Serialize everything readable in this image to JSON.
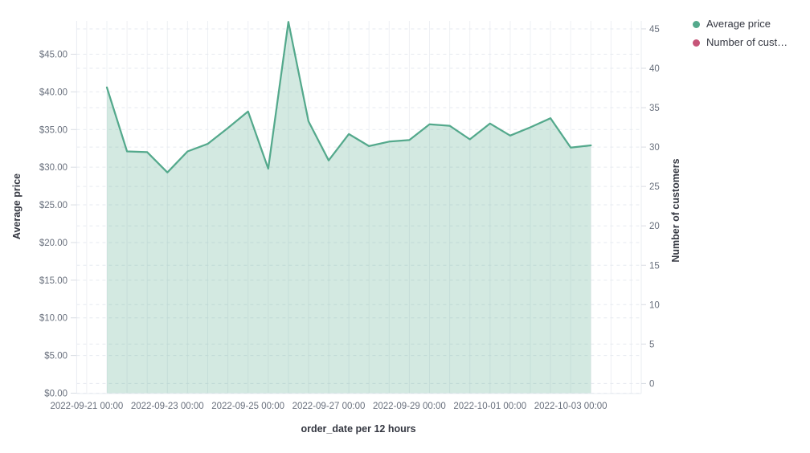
{
  "legend": {
    "position": "top-right",
    "items": [
      {
        "label": "Average price",
        "color": "#54a98c"
      },
      {
        "label": "Number of cust…",
        "color": "#c65578"
      }
    ]
  },
  "chart_data": {
    "type": "area",
    "title": "",
    "xlabel": "order_date per 12 hours",
    "ylabel_left": "Average price",
    "ylabel_right": "Number of customers",
    "grid": true,
    "legend_position": "top-right",
    "x_tick_labels": [
      "2022-09-21 00:00",
      "2022-09-23 00:00",
      "2022-09-25 00:00",
      "2022-09-27 00:00",
      "2022-09-29 00:00",
      "2022-10-01 00:00",
      "2022-10-03 00:00"
    ],
    "left_axis": {
      "min": 0,
      "max": 45,
      "step": 5,
      "tick_labels": [
        "$0.00",
        "$5.00",
        "$10.00",
        "$15.00",
        "$20.00",
        "$25.00",
        "$30.00",
        "$35.00",
        "$40.00",
        "$45.00"
      ]
    },
    "right_axis": {
      "min": 0,
      "max": 45,
      "step": 5,
      "tick_labels": [
        "0",
        "5",
        "10",
        "15",
        "20",
        "25",
        "30",
        "35",
        "40",
        "45"
      ]
    },
    "series": [
      {
        "name": "Average price",
        "color": "#54a98c",
        "fill": "rgba(84,169,140,0.26)",
        "x": [
          "2022-09-21 12:00",
          "2022-09-22 00:00",
          "2022-09-22 12:00",
          "2022-09-23 00:00",
          "2022-09-23 12:00",
          "2022-09-24 00:00",
          "2022-09-24 12:00",
          "2022-09-25 00:00",
          "2022-09-25 12:00",
          "2022-09-26 00:00",
          "2022-09-26 12:00",
          "2022-09-27 00:00",
          "2022-09-27 12:00",
          "2022-09-28 00:00",
          "2022-09-28 12:00",
          "2022-09-29 00:00",
          "2022-09-29 12:00",
          "2022-09-30 00:00",
          "2022-09-30 12:00",
          "2022-10-01 00:00",
          "2022-10-01 12:00",
          "2022-10-02 00:00",
          "2022-10-02 12:00",
          "2022-10-03 00:00",
          "2022-10-03 12:00"
        ],
        "values": [
          40.6,
          32.1,
          32.0,
          29.3,
          32.1,
          33.1,
          35.2,
          37.4,
          29.8,
          49.3,
          36.1,
          30.9,
          34.4,
          32.8,
          33.4,
          33.6,
          35.7,
          35.5,
          33.7,
          35.8,
          34.2,
          35.3,
          36.5,
          32.6,
          32.9
        ]
      },
      {
        "name": "Number of customers",
        "color": "#c65578",
        "x": [],
        "values": []
      }
    ]
  }
}
